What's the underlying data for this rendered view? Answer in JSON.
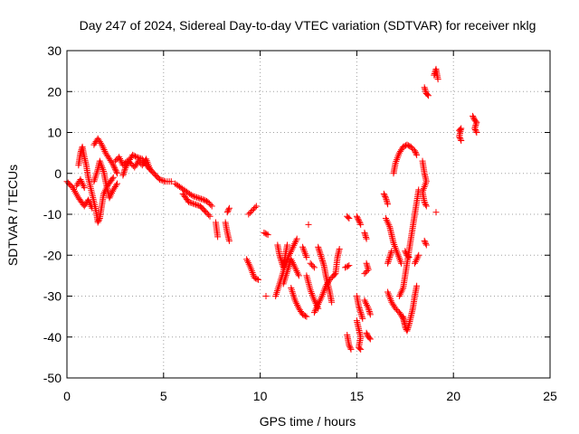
{
  "chart_data": {
    "type": "scatter",
    "title": "Day 247 of 2024, Sidereal Day-to-day VTEC variation (SDTVAR) for receiver nklg",
    "xlabel": "GPS time / hours",
    "ylabel": "SDTVAR / TECUs",
    "xlim": [
      0,
      25
    ],
    "ylim": [
      -50,
      30
    ],
    "xticks": [
      0,
      5,
      10,
      15,
      20,
      25
    ],
    "yticks": [
      -50,
      -40,
      -30,
      -20,
      -10,
      0,
      10,
      20,
      30
    ],
    "xtick_labels": [
      "0",
      "5",
      "10",
      "15",
      "20",
      "25"
    ],
    "ytick_labels": [
      "-50",
      "-40",
      "-30",
      "-20",
      "-10",
      "0",
      "10",
      "20",
      "30"
    ],
    "grid": true,
    "marker": "+",
    "series_color": "#ff0000",
    "segments": [
      [
        [
          0.0,
          -2.0
        ],
        [
          0.3,
          -3.5
        ],
        [
          0.6,
          -6.0
        ],
        [
          0.9,
          -8.0
        ],
        [
          1.1,
          -6.5
        ],
        [
          1.3,
          -8.5
        ]
      ],
      [
        [
          0.5,
          -3.0
        ],
        [
          0.7,
          -1.5
        ],
        [
          0.9,
          -3.5
        ]
      ],
      [
        [
          0.6,
          2.0
        ],
        [
          0.7,
          5.0
        ],
        [
          0.8,
          6.5
        ],
        [
          0.9,
          4.0
        ],
        [
          1.0,
          2.0
        ],
        [
          1.1,
          -1.0
        ],
        [
          1.3,
          -5.0
        ],
        [
          1.5,
          -9.0
        ],
        [
          1.6,
          -12.0
        ],
        [
          1.7,
          -11.0
        ],
        [
          1.8,
          -8.0
        ],
        [
          1.9,
          -5.0
        ],
        [
          2.1,
          -3.0
        ],
        [
          2.4,
          -1.0
        ]
      ],
      [
        [
          1.4,
          -2.0
        ],
        [
          1.6,
          1.0
        ],
        [
          1.7,
          3.0
        ],
        [
          1.9,
          0.5
        ],
        [
          2.0,
          -2.0
        ],
        [
          2.2,
          -6.0
        ],
        [
          2.4,
          -4.0
        ],
        [
          2.6,
          -2.5
        ]
      ],
      [
        [
          1.4,
          7.0
        ],
        [
          1.6,
          8.5
        ],
        [
          1.8,
          7.0
        ],
        [
          2.0,
          5.0
        ],
        [
          2.2,
          3.5
        ],
        [
          2.4,
          2.0
        ],
        [
          2.5,
          1.0
        ],
        [
          2.6,
          0.0
        ]
      ],
      [
        [
          2.5,
          3.0
        ],
        [
          2.7,
          4.0
        ],
        [
          2.9,
          2.0
        ],
        [
          3.1,
          3.0
        ],
        [
          3.3,
          2.5
        ],
        [
          3.5,
          1.5
        ],
        [
          3.7,
          3.0
        ],
        [
          3.9,
          2.0
        ],
        [
          4.1,
          3.5
        ],
        [
          4.3,
          1.0
        ]
      ],
      [
        [
          2.9,
          -0.5
        ],
        [
          3.0,
          1.0
        ],
        [
          3.2,
          3.0
        ],
        [
          3.4,
          4.5
        ],
        [
          3.6,
          4.0
        ],
        [
          3.9,
          3.5
        ],
        [
          4.2,
          1.5
        ],
        [
          4.5,
          0.0
        ],
        [
          4.8,
          -1.5
        ],
        [
          5.1,
          -2.0
        ],
        [
          5.4,
          -2.0
        ]
      ],
      [
        [
          5.6,
          -2.5
        ],
        [
          5.9,
          -3.5
        ],
        [
          6.2,
          -4.5
        ],
        [
          6.5,
          -5.5
        ],
        [
          6.8,
          -6.0
        ],
        [
          7.1,
          -6.5
        ],
        [
          7.3,
          -7.0
        ],
        [
          7.5,
          -8.0
        ]
      ],
      [
        [
          6.0,
          -5.0
        ],
        [
          6.3,
          -7.0
        ],
        [
          6.6,
          -7.5
        ],
        [
          6.9,
          -8.0
        ],
        [
          7.2,
          -9.5
        ],
        [
          7.4,
          -10.5
        ]
      ],
      [
        [
          7.7,
          -12.0
        ],
        [
          7.8,
          -15.5
        ]
      ],
      [
        [
          8.2,
          -12.0
        ],
        [
          8.3,
          -14.5
        ],
        [
          8.4,
          -16.5
        ]
      ],
      [
        [
          8.3,
          -9.5
        ],
        [
          8.4,
          -8.5
        ]
      ],
      [
        [
          9.4,
          -10.0
        ],
        [
          9.6,
          -9.0
        ],
        [
          9.8,
          -8.0
        ]
      ],
      [
        [
          9.3,
          -21.0
        ],
        [
          9.5,
          -23.0
        ],
        [
          9.7,
          -25.5
        ],
        [
          9.9,
          -26.0
        ]
      ],
      [
        [
          10.2,
          -14.5
        ],
        [
          10.4,
          -15.0
        ]
      ],
      [
        [
          10.3,
          -30.0
        ]
      ],
      [
        [
          10.9,
          -17.5
        ],
        [
          11.0,
          -20.0
        ],
        [
          11.1,
          -21.5
        ],
        [
          11.2,
          -23.0
        ],
        [
          11.3,
          -20.0
        ],
        [
          11.4,
          -17.5
        ]
      ],
      [
        [
          10.8,
          -30.0
        ],
        [
          11.0,
          -27.0
        ],
        [
          11.2,
          -24.0
        ],
        [
          11.3,
          -22.0
        ],
        [
          11.5,
          -20.0
        ],
        [
          11.7,
          -18.0
        ],
        [
          11.9,
          -16.0
        ]
      ],
      [
        [
          11.2,
          -27.0
        ],
        [
          11.4,
          -24.0
        ],
        [
          11.6,
          -21.0
        ],
        [
          11.8,
          -23.0
        ],
        [
          12.0,
          -25.0
        ]
      ],
      [
        [
          11.6,
          -28.0
        ],
        [
          11.8,
          -31.0
        ],
        [
          12.0,
          -33.0
        ],
        [
          12.2,
          -34.5
        ],
        [
          12.4,
          -35.0
        ]
      ],
      [
        [
          12.2,
          -18.0
        ],
        [
          12.4,
          -20.5
        ]
      ],
      [
        [
          12.4,
          -25.0
        ],
        [
          12.6,
          -28.5
        ],
        [
          12.8,
          -31.0
        ],
        [
          13.0,
          -33.0
        ]
      ],
      [
        [
          12.6,
          -22.0
        ],
        [
          12.8,
          -23.0
        ]
      ],
      [
        [
          12.5,
          -12.5
        ]
      ],
      [
        [
          13.0,
          -18.0
        ],
        [
          13.1,
          -19.5
        ],
        [
          13.2,
          -21.0
        ],
        [
          13.3,
          -22.5
        ],
        [
          13.4,
          -25.0
        ],
        [
          13.5,
          -27.0
        ],
        [
          13.6,
          -29.0
        ],
        [
          13.7,
          -31.5
        ]
      ],
      [
        [
          12.8,
          -34.0
        ],
        [
          13.0,
          -32.0
        ],
        [
          13.2,
          -30.0
        ],
        [
          13.4,
          -27.5
        ],
        [
          13.6,
          -26.0
        ],
        [
          13.8,
          -25.0
        ],
        [
          13.9,
          -24.5
        ],
        [
          14.0,
          -20.5
        ],
        [
          14.1,
          -18.5
        ]
      ],
      [
        [
          14.5,
          -10.5
        ],
        [
          14.6,
          -11.0
        ]
      ],
      [
        [
          14.4,
          -23.0
        ],
        [
          14.6,
          -22.5
        ]
      ],
      [
        [
          14.5,
          -39.5
        ],
        [
          14.6,
          -42.0
        ],
        [
          14.7,
          -43.0
        ]
      ],
      [
        [
          15.0,
          -10.5
        ],
        [
          15.1,
          -11.5
        ],
        [
          15.2,
          -12.5
        ]
      ],
      [
        [
          15.0,
          -30.0
        ],
        [
          15.1,
          -32.5
        ],
        [
          15.2,
          -34.0
        ],
        [
          15.3,
          -35.5
        ]
      ],
      [
        [
          15.0,
          -36.0
        ],
        [
          15.1,
          -38.0
        ],
        [
          15.2,
          -40.0
        ],
        [
          15.1,
          -42.5
        ],
        [
          15.2,
          -43.0
        ]
      ],
      [
        [
          15.4,
          -14.5
        ],
        [
          15.5,
          -16.0
        ]
      ],
      [
        [
          15.5,
          -22.0
        ],
        [
          15.6,
          -23.5
        ],
        [
          15.4,
          -24.5
        ]
      ],
      [
        [
          15.4,
          -31.0
        ],
        [
          15.6,
          -33.0
        ],
        [
          15.7,
          -34.5
        ]
      ],
      [
        [
          15.5,
          -39.0
        ],
        [
          15.6,
          -40.0
        ],
        [
          15.7,
          -40.5
        ]
      ],
      [
        [
          16.4,
          -5.0
        ],
        [
          16.5,
          -6.0
        ],
        [
          16.6,
          -7.5
        ]
      ],
      [
        [
          16.5,
          -11.0
        ],
        [
          16.7,
          -13.0
        ],
        [
          16.8,
          -15.0
        ],
        [
          16.9,
          -17.0
        ],
        [
          17.1,
          -19.5
        ],
        [
          17.3,
          -22.0
        ]
      ],
      [
        [
          16.6,
          -22.0
        ],
        [
          16.7,
          -20.5
        ],
        [
          16.8,
          -19.0
        ]
      ],
      [
        [
          16.6,
          -29.0
        ],
        [
          16.8,
          -31.5
        ],
        [
          17.0,
          -33.0
        ],
        [
          17.2,
          -34.0
        ],
        [
          17.4,
          -35.5
        ],
        [
          17.5,
          -37.0
        ]
      ],
      [
        [
          16.9,
          0.0
        ],
        [
          17.0,
          2.5
        ],
        [
          17.2,
          5.0
        ],
        [
          17.4,
          6.5
        ],
        [
          17.6,
          7.0
        ],
        [
          17.8,
          6.5
        ],
        [
          18.0,
          5.5
        ],
        [
          18.1,
          4.5
        ]
      ],
      [
        [
          17.2,
          -30.0
        ],
        [
          17.4,
          -28.0
        ],
        [
          17.5,
          -25.0
        ],
        [
          17.6,
          -22.0
        ],
        [
          17.7,
          -19.0
        ],
        [
          17.8,
          -16.0
        ],
        [
          17.9,
          -13.0
        ],
        [
          18.0,
          -10.0
        ],
        [
          18.1,
          -7.0
        ],
        [
          18.2,
          -4.0
        ]
      ],
      [
        [
          17.4,
          -35.0
        ],
        [
          17.5,
          -37.5
        ],
        [
          17.6,
          -38.5
        ],
        [
          17.7,
          -37.0
        ],
        [
          17.8,
          -35.0
        ],
        [
          17.9,
          -33.0
        ],
        [
          18.0,
          -30.0
        ],
        [
          18.1,
          -27.5
        ]
      ],
      [
        [
          17.5,
          -19.0
        ],
        [
          17.6,
          -20.0
        ],
        [
          17.7,
          -20.5
        ]
      ],
      [
        [
          18.0,
          -22.0
        ],
        [
          18.2,
          -20.0
        ]
      ],
      [
        [
          18.4,
          3.0
        ],
        [
          18.5,
          0.0
        ],
        [
          18.6,
          -2.0
        ],
        [
          18.4,
          -4.5
        ],
        [
          18.5,
          -7.0
        ],
        [
          18.6,
          -8.0
        ]
      ],
      [
        [
          18.5,
          -16.5
        ],
        [
          18.6,
          -17.5
        ]
      ],
      [
        [
          18.5,
          21.0
        ],
        [
          18.6,
          19.5
        ],
        [
          18.7,
          19.0
        ]
      ],
      [
        [
          19.1,
          -9.5
        ]
      ],
      [
        [
          19.0,
          24.0
        ],
        [
          19.1,
          25.5
        ],
        [
          19.2,
          23.0
        ]
      ],
      [
        [
          20.3,
          10.5
        ],
        [
          20.4,
          11.0
        ],
        [
          20.3,
          9.0
        ],
        [
          20.4,
          8.0
        ]
      ],
      [
        [
          21.0,
          14.0
        ],
        [
          21.1,
          13.0
        ],
        [
          21.2,
          12.5
        ],
        [
          21.1,
          11.0
        ],
        [
          21.2,
          10.0
        ]
      ]
    ]
  }
}
